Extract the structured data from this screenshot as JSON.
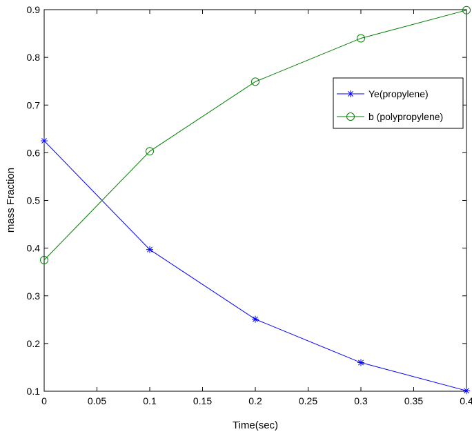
{
  "chart_data": {
    "type": "line",
    "title": "",
    "xlabel": "Time(sec)",
    "ylabel": "mass Fraction",
    "xlim": [
      0,
      0.4
    ],
    "ylim": [
      0.1,
      0.9
    ],
    "xticks": [
      "0",
      "0.05",
      "0.1",
      "0.15",
      "0.2",
      "0.25",
      "0.3",
      "0.35",
      "0.4"
    ],
    "yticks": [
      "0.1",
      "0.2",
      "0.3",
      "0.4",
      "0.5",
      "0.6",
      "0.7",
      "0.8",
      "0.9"
    ],
    "grid": false,
    "legend_position": "top-right",
    "series": [
      {
        "name": "Ye(propylene)",
        "color": "#0000ff",
        "marker": "asterisk",
        "x": [
          0,
          0.1,
          0.2,
          0.3,
          0.4
        ],
        "y": [
          0.625,
          0.397,
          0.251,
          0.16,
          0.101
        ]
      },
      {
        "name": "b (polypropylene)",
        "color": "#007f00",
        "marker": "circle",
        "x": [
          0,
          0.1,
          0.2,
          0.3,
          0.4
        ],
        "y": [
          0.375,
          0.603,
          0.749,
          0.84,
          0.899
        ]
      }
    ]
  }
}
